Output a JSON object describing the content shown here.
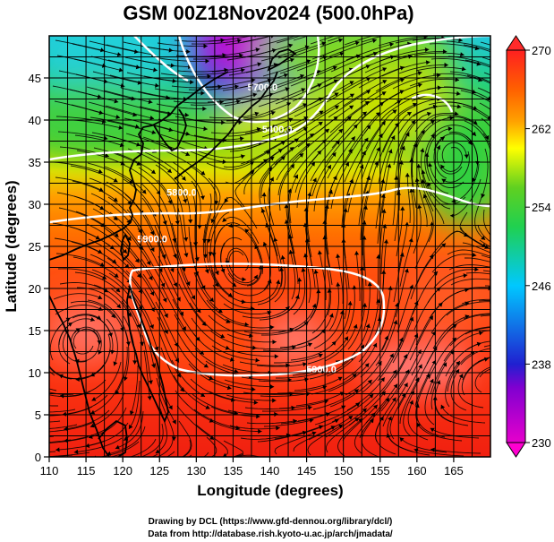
{
  "title": "GSM 00Z18Nov2024 (500.0hPa)",
  "map": {
    "xlabel": "Longitude (degrees)",
    "ylabel": "Latitude  (degrees)",
    "xlim": [
      110,
      170
    ],
    "ylim": [
      0,
      50
    ],
    "xticks": [
      110,
      115,
      120,
      125,
      130,
      135,
      140,
      145,
      150,
      155,
      160,
      165
    ],
    "yticks": [
      0,
      5,
      10,
      15,
      20,
      25,
      30,
      35,
      40,
      45
    ],
    "grid_step_deg": 2.5,
    "field": "temperature",
    "colorbar": {
      "ticks": [
        "230",
        "238",
        "246",
        "254",
        "262",
        "270"
      ],
      "min": 230,
      "max": 270,
      "colors": [
        "#e600cc",
        "#2020d0",
        "#00c8ff",
        "#20d020",
        "#ffff00",
        "#ff8c00",
        "#ff2000",
        "#e81010"
      ]
    },
    "contours": [
      {
        "label": "5400.0",
        "lon": 141,
        "lat": 38.5
      },
      {
        "label": "5700.0",
        "lon": 139,
        "lat": 43.5
      },
      {
        "label": "5800.0",
        "lon": 128,
        "lat": 31
      },
      {
        "label": "5900.0",
        "lon": 124,
        "lat": 25.5
      },
      {
        "label": "5900.0",
        "lon": 147,
        "lat": 10
      }
    ]
  },
  "credits": {
    "line1": "Drawing by DCL (https://www.gfd-dennou.org/library/dcl/)",
    "line2": "Data from http://database.rish.kyoto-u.ac.jp/arch/jmadata/"
  }
}
